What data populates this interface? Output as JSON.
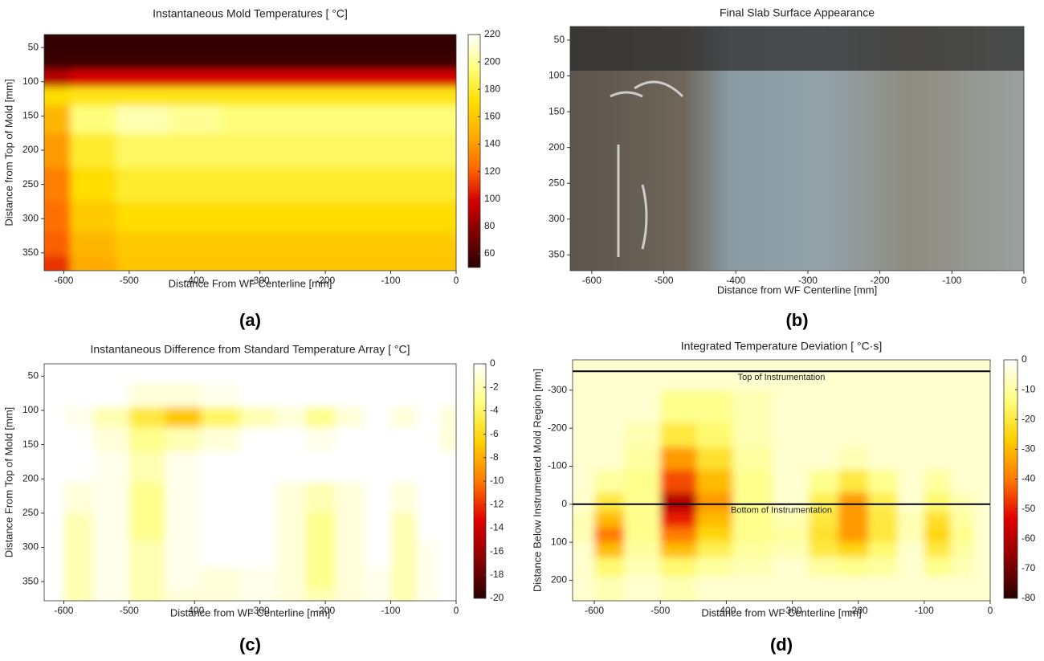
{
  "chart_data": [
    {
      "type": "contour",
      "title": "Instantaneous Mold Temperatures [ °C]",
      "x_label": "Distance From WF Centerline [mm]",
      "y_label": "Distance from Top of Mold [mm]",
      "caption": "(a)",
      "xlim": [
        -630,
        0
      ],
      "ylim": [
        376,
        31
      ],
      "xticks": [
        -600,
        -500,
        -400,
        -300,
        -200,
        -100,
        0
      ],
      "yticks": [
        50,
        100,
        150,
        200,
        250,
        300,
        350
      ],
      "zlim": [
        50,
        220
      ],
      "zticks": [
        60,
        80,
        100,
        120,
        140,
        160,
        180,
        200,
        220
      ],
      "colors": [
        "#2a0000",
        "#7a0000",
        "#d40000",
        "#ff6a00",
        "#ffb000",
        "#ffe000",
        "#ffff80",
        "#ffffff"
      ],
      "x": [
        -620,
        -560,
        -480,
        -400,
        -320,
        -240,
        -160,
        -80,
        -20
      ],
      "y": [
        40,
        70,
        95,
        120,
        150,
        200,
        250,
        300,
        340,
        370
      ],
      "z": [
        [
          52,
          52,
          52,
          52,
          52,
          52,
          52,
          52,
          52
        ],
        [
          55,
          55,
          55,
          55,
          55,
          55,
          55,
          55,
          55
        ],
        [
          90,
          100,
          100,
          100,
          100,
          100,
          100,
          100,
          100
        ],
        [
          170,
          175,
          175,
          175,
          175,
          175,
          175,
          175,
          175
        ],
        [
          150,
          195,
          205,
          200,
          195,
          195,
          195,
          195,
          195
        ],
        [
          140,
          180,
          190,
          190,
          190,
          190,
          190,
          190,
          190
        ],
        [
          130,
          170,
          180,
          180,
          180,
          180,
          180,
          180,
          180
        ],
        [
          125,
          160,
          170,
          170,
          170,
          170,
          170,
          170,
          170
        ],
        [
          120,
          150,
          160,
          160,
          160,
          160,
          160,
          160,
          160
        ],
        [
          110,
          145,
          158,
          158,
          158,
          158,
          158,
          158,
          158
        ]
      ]
    },
    {
      "type": "image",
      "title": "Final Slab Surface Appearance",
      "x_label": "Distance from WF Centerline [mm]",
      "caption": "(b)",
      "xlim": [
        -630,
        0
      ],
      "ylim": [
        372,
        31
      ],
      "xticks": [
        -600,
        -500,
        -400,
        -300,
        -200,
        -100,
        0
      ],
      "yticks": [
        50,
        100,
        150,
        200,
        250,
        300,
        350
      ]
    },
    {
      "type": "contour",
      "title": "Instantaneous Difference from Standard Temperature Array [  °C]",
      "x_label": "Distance from WF Centerline [mm]",
      "y_label": "Distance From Top of Mold [mm]",
      "caption": "(c)",
      "xlim": [
        -630,
        0
      ],
      "ylim": [
        378,
        32
      ],
      "xticks": [
        -600,
        -500,
        -400,
        -300,
        -200,
        -100,
        0
      ],
      "yticks": [
        50,
        100,
        150,
        200,
        250,
        300,
        350
      ],
      "zlim": [
        -20,
        0
      ],
      "zticks": [
        0,
        -2,
        -4,
        -6,
        -8,
        -10,
        -12,
        -14,
        -16,
        -18,
        -20
      ],
      "colors": [
        "#2a0000",
        "#8b0000",
        "#e00000",
        "#ff7a00",
        "#ffd000",
        "#ffff80",
        "#ffffff"
      ],
      "x": [
        -620,
        -580,
        -530,
        -470,
        -420,
        -360,
        -300,
        -250,
        -210,
        -160,
        -120,
        -80,
        -40,
        -10
      ],
      "y": [
        40,
        80,
        110,
        140,
        180,
        230,
        270,
        310,
        350,
        370
      ],
      "z": [
        [
          0,
          0,
          0,
          0,
          0,
          0,
          0,
          0,
          0,
          0,
          0,
          0,
          0,
          0
        ],
        [
          0,
          0,
          0,
          -1,
          -1,
          -0.5,
          0,
          0,
          0,
          0,
          0,
          0,
          0,
          0
        ],
        [
          0,
          -0.5,
          -2,
          -5,
          -7,
          -4,
          -2,
          -1,
          -3,
          -1,
          0,
          -1,
          0,
          -1
        ],
        [
          0,
          0,
          -1,
          -3,
          -2,
          -1,
          0,
          0,
          -0.5,
          0,
          0,
          0,
          0,
          -1
        ],
        [
          0,
          0,
          -0.5,
          -2,
          -0.5,
          0,
          0,
          0,
          0,
          0,
          0,
          0,
          0,
          0
        ],
        [
          0,
          -1,
          -0.5,
          -3,
          -0.5,
          0,
          0,
          -1,
          -2,
          -1,
          0,
          -1,
          0,
          0
        ],
        [
          0,
          -2,
          -0.5,
          -3,
          -0.5,
          0,
          0,
          -1,
          -3,
          -1,
          0,
          -2,
          0,
          0
        ],
        [
          0,
          -2,
          -0.5,
          -2,
          -0.5,
          0,
          0,
          -1,
          -3,
          -1,
          0,
          -2,
          -0.5,
          0
        ],
        [
          0,
          -2,
          -0.5,
          -2,
          -0.5,
          -1,
          -0.5,
          -1,
          -3,
          -1,
          -0.5,
          -2,
          -0.5,
          0
        ],
        [
          0,
          -2,
          -0.5,
          -2,
          -1,
          -1,
          -0.5,
          -1,
          -2,
          -1,
          -0.5,
          -2,
          -0.5,
          0
        ]
      ]
    },
    {
      "type": "contour",
      "title": "Integrated Temperature Deviation [ °C·s]",
      "x_label": "Distance from WF Centerline [mm]",
      "y_label": "Distance Below Instrumented Mold Region [mm]",
      "caption": "(d)",
      "xlim": [
        -633,
        0
      ],
      "ylim": [
        254,
        -380
      ],
      "xticks": [
        -600,
        -500,
        -400,
        -300,
        -200,
        -100,
        0
      ],
      "yticks": [
        -300,
        -200,
        -100,
        0,
        100,
        200
      ],
      "zlim": [
        -80,
        0
      ],
      "zticks": [
        0,
        -10,
        -20,
        -30,
        -40,
        -50,
        -60,
        -70,
        -80
      ],
      "colors": [
        "#2a0000",
        "#8b0000",
        "#e00000",
        "#ff7a00",
        "#ffd000",
        "#ffff80",
        "#ffffff"
      ],
      "annotations": [
        {
          "text": "Top of Instrumentation",
          "y": -350
        },
        {
          "text": "Bottom of Instrumentation",
          "y": 0
        }
      ],
      "x": [
        -620,
        -580,
        -530,
        -470,
        -420,
        -360,
        -300,
        -250,
        -210,
        -160,
        -120,
        -80,
        -40,
        -10
      ],
      "y": [
        -350,
        -250,
        -180,
        -120,
        -60,
        0,
        40,
        80,
        120,
        160,
        220
      ],
      "z": [
        [
          -5,
          -5,
          -5,
          -5,
          -5,
          -5,
          -5,
          -5,
          -5,
          -5,
          -5,
          -5,
          -5,
          -5
        ],
        [
          -5,
          -5,
          -5,
          -12,
          -12,
          -8,
          -5,
          -5,
          -5,
          -5,
          -5,
          -5,
          -5,
          -5
        ],
        [
          -5,
          -5,
          -8,
          -20,
          -15,
          -8,
          -5,
          -5,
          -5,
          -5,
          -5,
          -5,
          -5,
          -5
        ],
        [
          -5,
          -5,
          -10,
          -35,
          -22,
          -10,
          -5,
          -5,
          -8,
          -5,
          -5,
          -5,
          -5,
          -5
        ],
        [
          -5,
          -10,
          -12,
          -45,
          -30,
          -12,
          -5,
          -12,
          -20,
          -12,
          -5,
          -10,
          -5,
          -5
        ],
        [
          -5,
          -20,
          -12,
          -60,
          -35,
          -12,
          -5,
          -18,
          -35,
          -18,
          -5,
          -15,
          -8,
          -5
        ],
        [
          -8,
          -30,
          -12,
          -50,
          -30,
          -12,
          -8,
          -20,
          -35,
          -20,
          -8,
          -22,
          -10,
          -5
        ],
        [
          -8,
          -40,
          -12,
          -40,
          -25,
          -12,
          -10,
          -22,
          -35,
          -20,
          -8,
          -25,
          -12,
          -5
        ],
        [
          -5,
          -30,
          -10,
          -30,
          -18,
          -10,
          -8,
          -20,
          -25,
          -15,
          -5,
          -20,
          -10,
          -5
        ],
        [
          -5,
          -15,
          -8,
          -15,
          -10,
          -8,
          -5,
          -10,
          -12,
          -10,
          -5,
          -12,
          -8,
          -5
        ],
        [
          -5,
          -8,
          -5,
          -8,
          -5,
          -5,
          -5,
          -5,
          -5,
          -5,
          -5,
          -5,
          -5,
          -5
        ]
      ]
    }
  ]
}
